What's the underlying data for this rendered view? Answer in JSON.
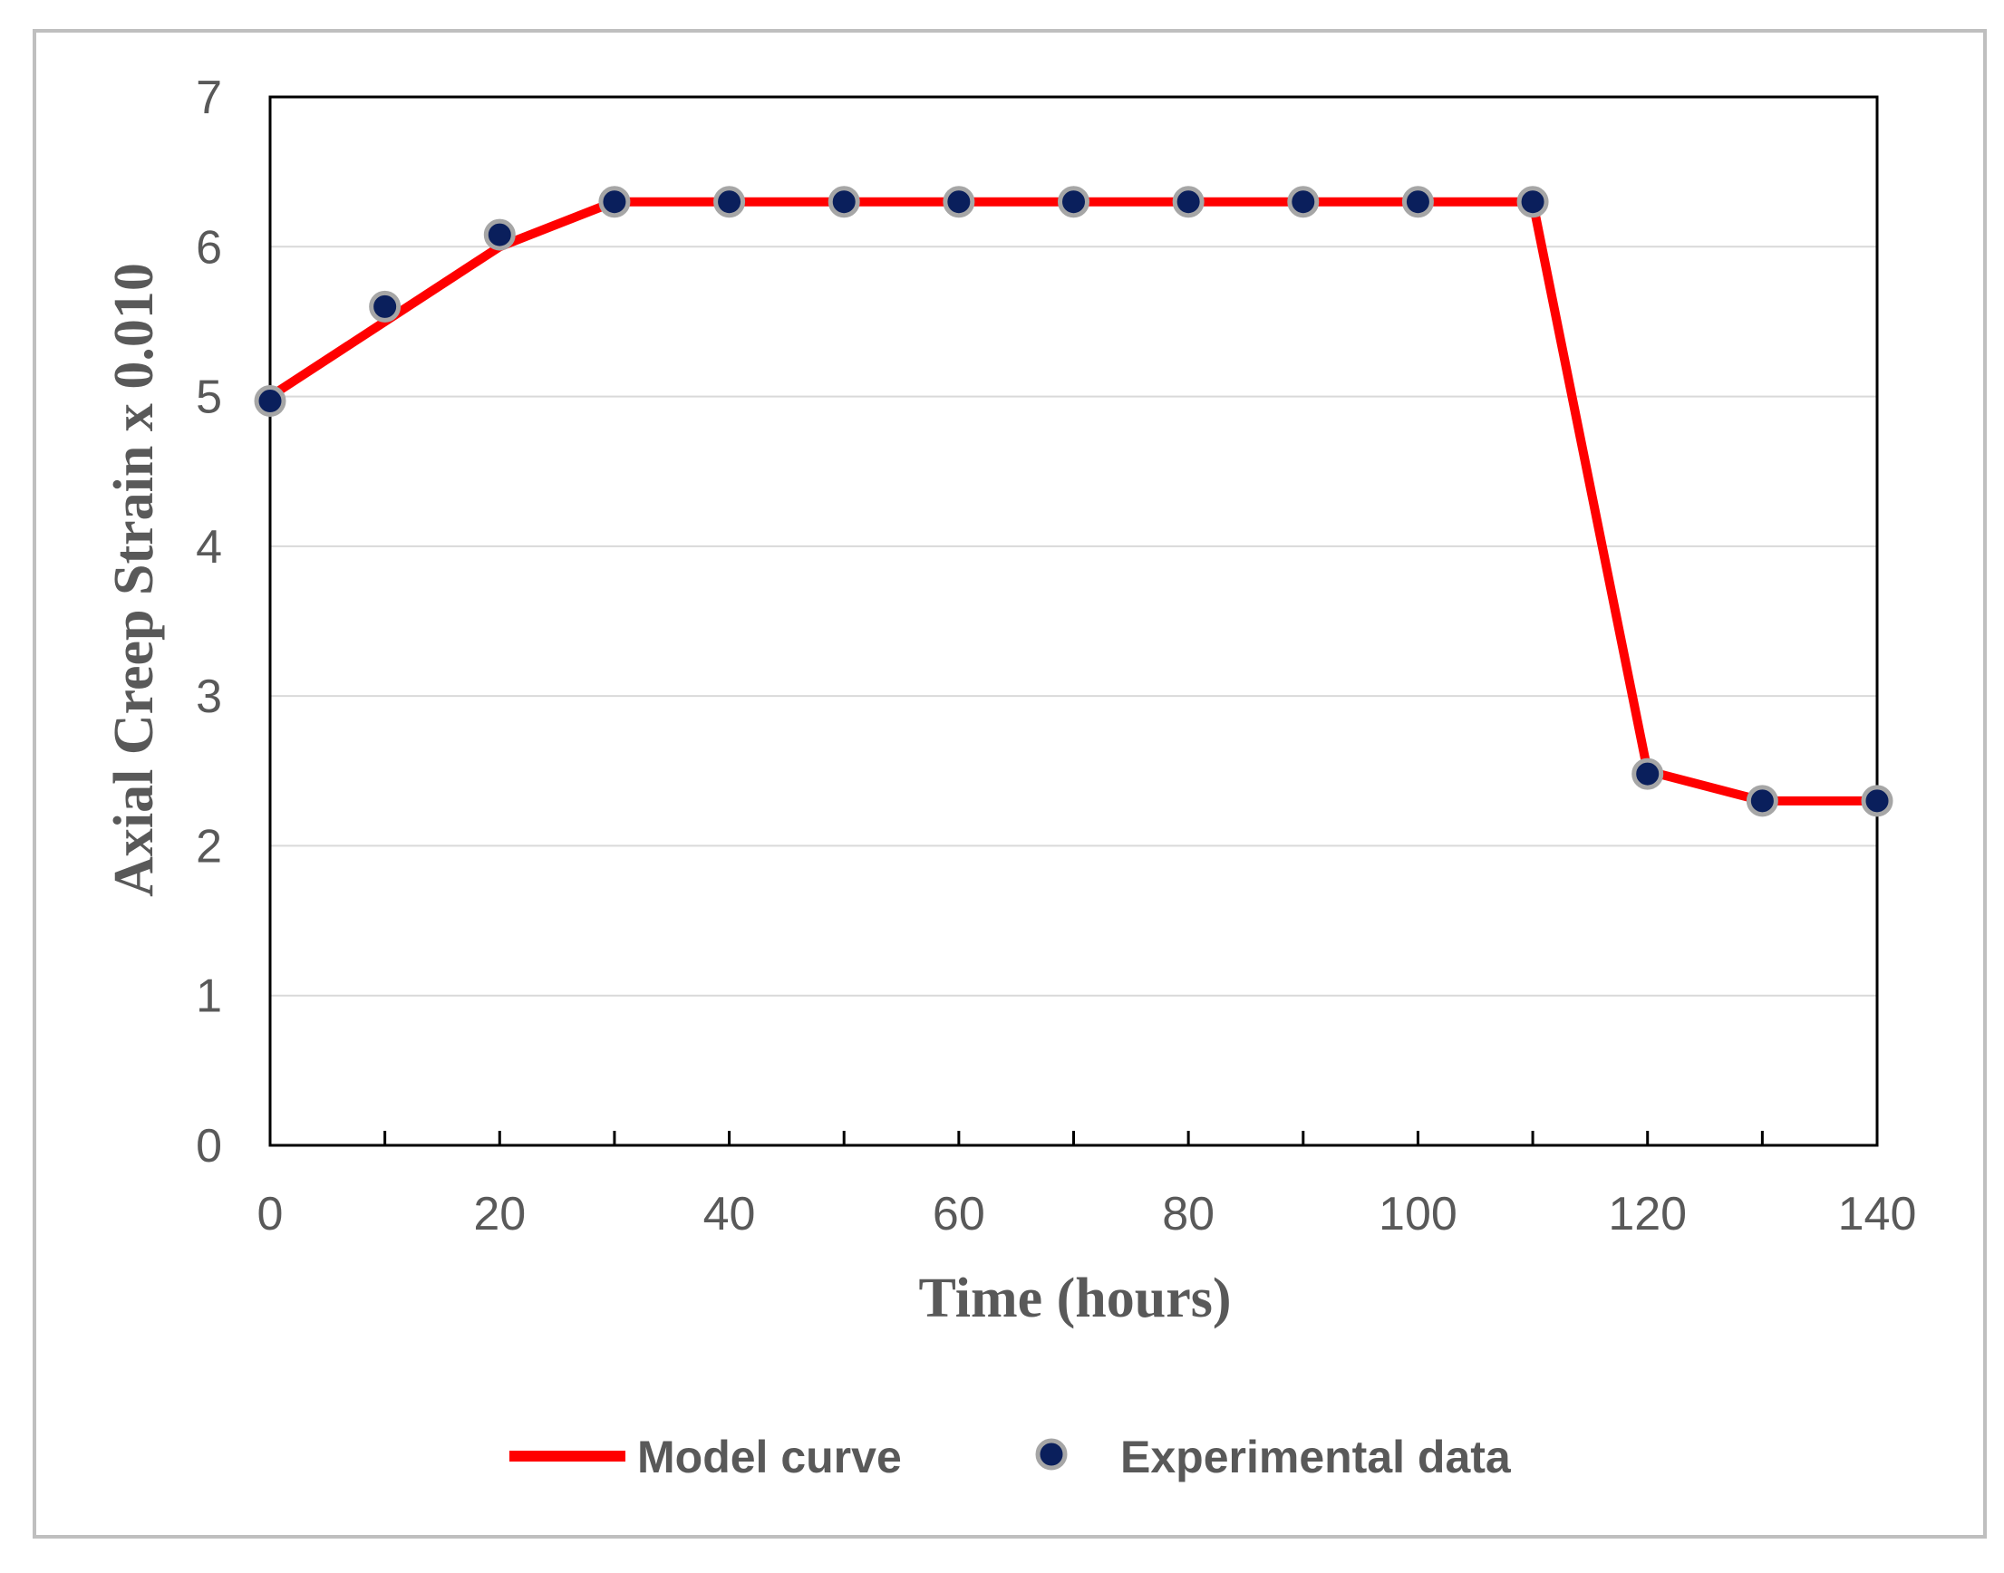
{
  "chart_data": {
    "type": "line",
    "title": "",
    "xlabel": "Time (hours)",
    "ylabel": "Axial Creep Strain x 0.010",
    "xlim": [
      0,
      140
    ],
    "ylim": [
      0,
      7
    ],
    "xticks": [
      0,
      20,
      40,
      60,
      80,
      100,
      120,
      140
    ],
    "yticks": [
      0,
      1,
      2,
      3,
      4,
      5,
      6,
      7
    ],
    "x_minor_ticks": [
      10,
      30,
      50,
      70,
      90,
      110,
      130
    ],
    "grid": "horizontal",
    "legend": "bottom",
    "series": [
      {
        "name": "Model curve",
        "kind": "line",
        "color": "#ff0000",
        "x": [
          0,
          10,
          20,
          30,
          40,
          50,
          60,
          70,
          80,
          90,
          100,
          110,
          120,
          130,
          140
        ],
        "y": [
          5.0,
          5.5,
          6.0,
          6.3,
          6.3,
          6.3,
          6.3,
          6.3,
          6.3,
          6.3,
          6.3,
          6.3,
          2.5,
          2.3,
          2.3
        ]
      },
      {
        "name": "Experimental data",
        "kind": "scatter",
        "color": "#0a1f5c",
        "edge_color": "#a6a6a6",
        "x": [
          0,
          10,
          20,
          30,
          40,
          50,
          60,
          70,
          80,
          90,
          100,
          110,
          120,
          130,
          140
        ],
        "y": [
          4.97,
          5.6,
          6.08,
          6.3,
          6.3,
          6.3,
          6.3,
          6.3,
          6.3,
          6.3,
          6.3,
          6.3,
          2.48,
          2.3,
          2.3
        ]
      }
    ]
  }
}
